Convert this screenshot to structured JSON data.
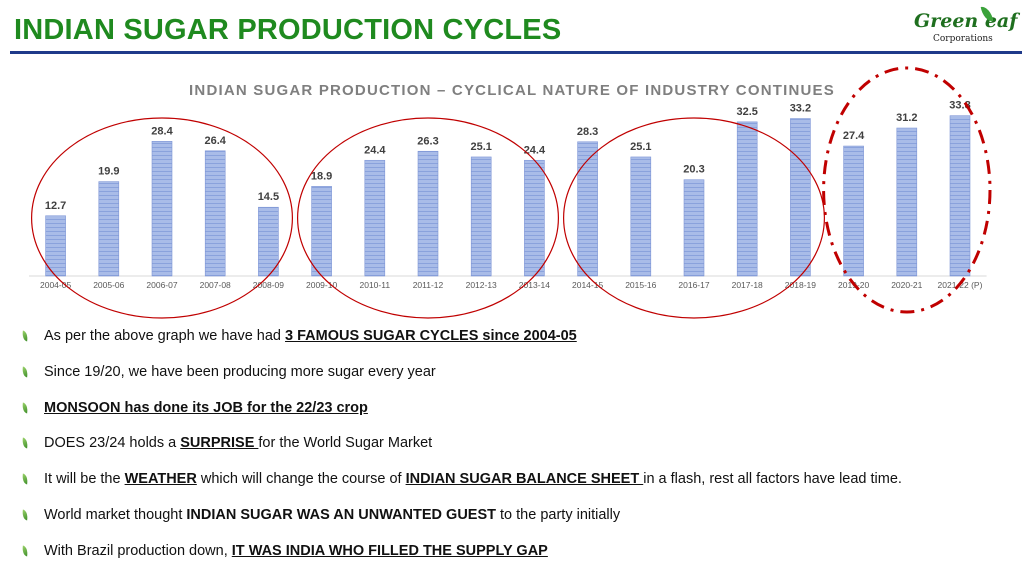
{
  "slide": {
    "title": "INDIAN SUGAR PRODUCTION CYCLES"
  },
  "logo": {
    "main": "Green  eaf",
    "sub": "Corporations"
  },
  "chart_data": {
    "type": "bar",
    "title": "INDIAN SUGAR PRODUCTION – CYCLICAL NATURE OF INDUSTRY CONTINUES",
    "categories": [
      "2004-05",
      "2005-06",
      "2006-07",
      "2007-08",
      "2008-09",
      "2009-10",
      "2010-11",
      "2011-12",
      "2012-13",
      "2013-14",
      "2014-15",
      "2015-16",
      "2016-17",
      "2017-18",
      "2018-19",
      "2019-20",
      "2020-21",
      "2021-22 (P)"
    ],
    "values": [
      12.7,
      19.9,
      28.4,
      26.4,
      14.5,
      18.9,
      24.4,
      26.3,
      25.1,
      24.4,
      28.3,
      25.1,
      20.3,
      32.5,
      33.2,
      27.4,
      31.2,
      33.8
    ],
    "value_labels": [
      "12.7",
      "19.9",
      "28.4",
      "26.4",
      "14.5",
      "18.9",
      "24.4",
      "26.3",
      "25.1",
      "24.4",
      "28.3",
      "25.1",
      "20.3",
      "32.5",
      "33.2",
      "27.4",
      "31.2",
      "33.8"
    ],
    "ylim": [
      0,
      35
    ],
    "grid": false,
    "legend": "none",
    "bar_color": "#a9bce8",
    "cycle_highlights": [
      {
        "from": 0,
        "to": 4,
        "style": "solid",
        "color": "#c00000"
      },
      {
        "from": 5,
        "to": 9,
        "style": "solid",
        "color": "#c00000"
      },
      {
        "from": 10,
        "to": 14,
        "style": "solid",
        "color": "#c00000"
      },
      {
        "from": 15,
        "to": 17,
        "style": "dash-dot",
        "color": "#c00000"
      }
    ]
  },
  "bullets": [
    {
      "segments": [
        {
          "t": "As per the above graph we have had ",
          "s": "n"
        },
        {
          "t": "3 FAMOUS SUGAR CYCLES since 2004-05",
          "s": "u"
        }
      ]
    },
    {
      "segments": [
        {
          "t": "Since 19/20, we have been producing more sugar every year",
          "s": "n"
        }
      ]
    },
    {
      "segments": [
        {
          "t": "MONSOON has done its JOB for the 22/23 crop ",
          "s": "u"
        }
      ]
    },
    {
      "segments": [
        {
          "t": "DOES 23/24 holds a ",
          "s": "n"
        },
        {
          "t": "SURPRISE ",
          "s": "u"
        },
        {
          "t": "for the World Sugar Market",
          "s": "n"
        }
      ]
    },
    {
      "segments": [
        {
          "t": "It will be the ",
          "s": "n"
        },
        {
          "t": "WEATHER",
          "s": "u"
        },
        {
          "t": " which will change the course of ",
          "s": "n"
        },
        {
          "t": "INDIAN SUGAR BALANCE SHEET ",
          "s": "u"
        },
        {
          "t": "in a flash, rest all factors have lead time.",
          "s": "n"
        }
      ]
    },
    {
      "segments": [
        {
          "t": "World market thought ",
          "s": "n"
        },
        {
          "t": "INDIAN SUGAR WAS AN UNWANTED GUEST",
          "s": "b"
        },
        {
          "t": " to the party initially",
          "s": "n"
        }
      ]
    },
    {
      "segments": [
        {
          "t": "With Brazil production down, ",
          "s": "n"
        },
        {
          "t": "IT WAS INDIA WHO FILLED THE SUPPLY GAP",
          "s": "u"
        }
      ]
    }
  ],
  "colors": {
    "title_green": "#1f8a1f",
    "rule_blue": "#1f3a8a",
    "highlight_red": "#c00000"
  }
}
